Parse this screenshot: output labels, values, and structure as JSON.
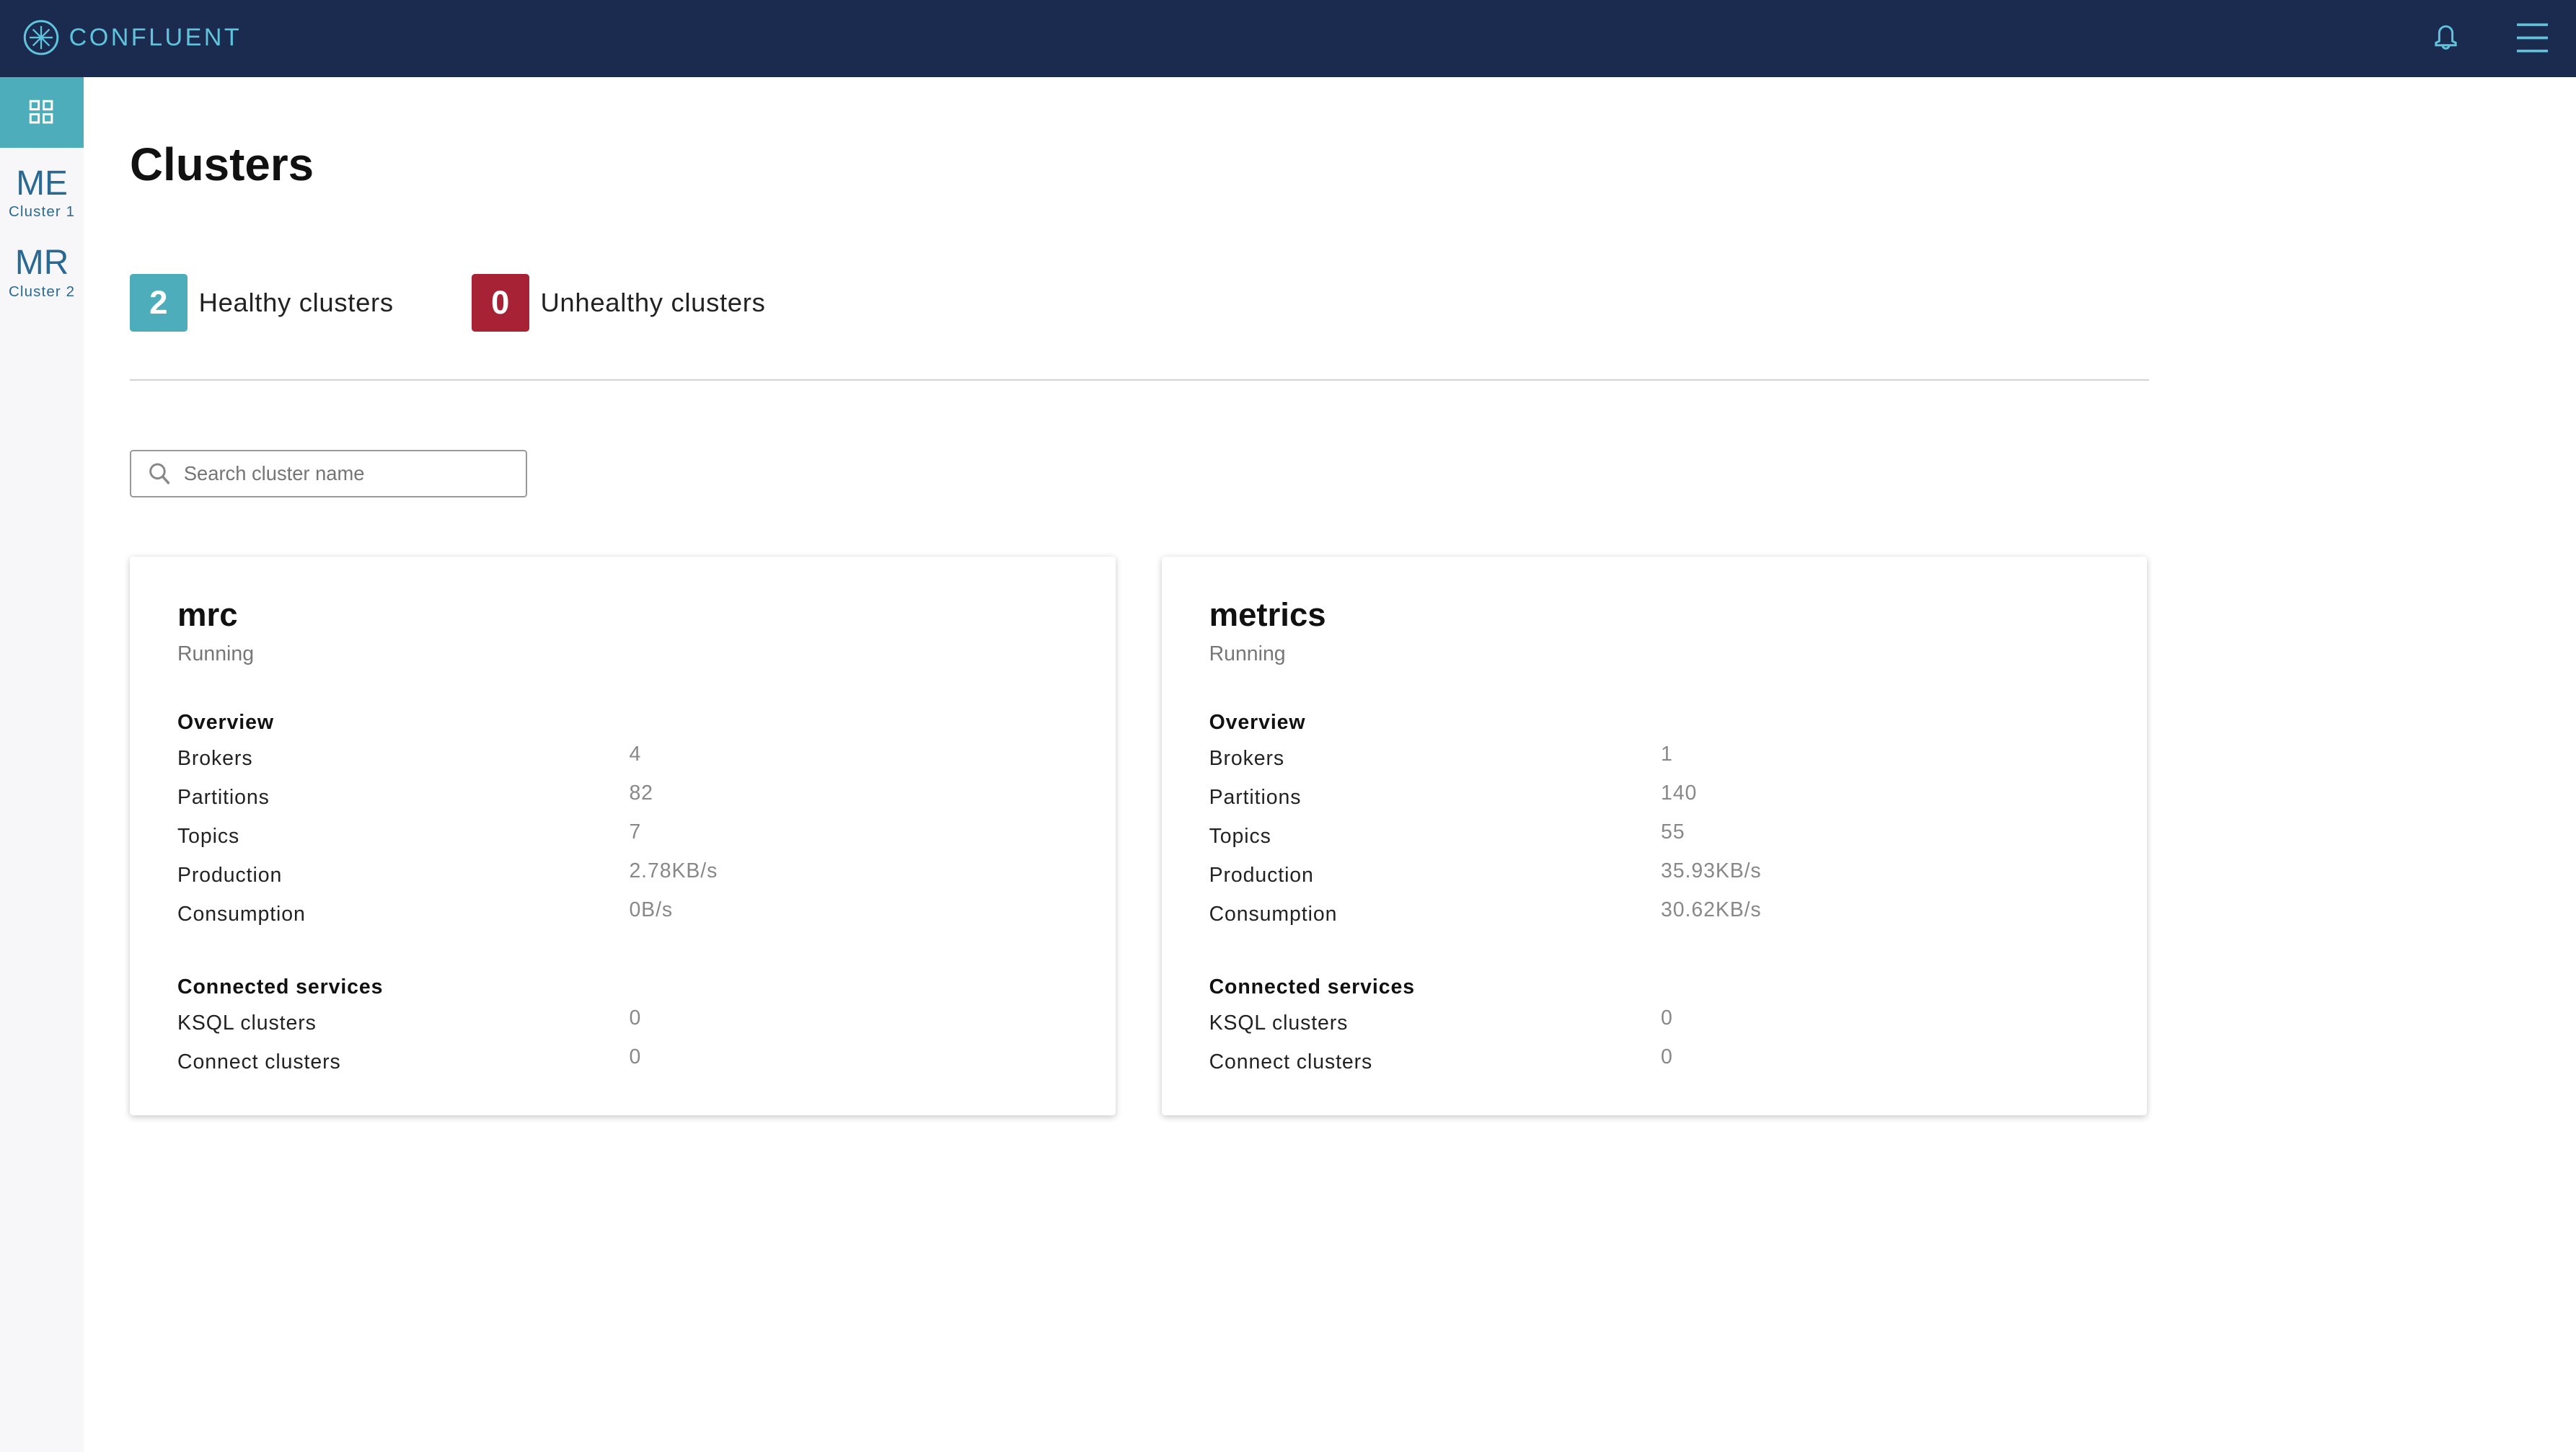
{
  "header": {
    "brand": "CONFLUENT",
    "icons": [
      "confluent-logo-icon",
      "bell-icon",
      "hamburger-menu-icon"
    ]
  },
  "sidebar": {
    "items": [
      {
        "abbr": "ME",
        "label": "Cluster 1"
      },
      {
        "abbr": "MR",
        "label": "Cluster 2"
      }
    ]
  },
  "page": {
    "title": "Clusters",
    "healthy": {
      "count": "2",
      "label": "Healthy clusters",
      "color": "#4eadbb"
    },
    "unhealthy": {
      "count": "0",
      "label": "Unhealthy clusters",
      "color": "#a82236"
    },
    "search_placeholder": "Search cluster name"
  },
  "clusters": [
    {
      "name": "mrc",
      "status": "Running",
      "overview_title": "Overview",
      "overview": [
        {
          "label": "Brokers",
          "value": "4"
        },
        {
          "label": "Partitions",
          "value": "82"
        },
        {
          "label": "Topics",
          "value": "7"
        },
        {
          "label": "Production",
          "value": "2.78KB/s"
        },
        {
          "label": "Consumption",
          "value": "0B/s"
        }
      ],
      "services_title": "Connected services",
      "services": [
        {
          "label": "KSQL clusters",
          "value": "0"
        },
        {
          "label": "Connect clusters",
          "value": "0"
        }
      ]
    },
    {
      "name": "metrics",
      "status": "Running",
      "overview_title": "Overview",
      "overview": [
        {
          "label": "Brokers",
          "value": "1"
        },
        {
          "label": "Partitions",
          "value": "140"
        },
        {
          "label": "Topics",
          "value": "55"
        },
        {
          "label": "Production",
          "value": "35.93KB/s"
        },
        {
          "label": "Consumption",
          "value": "30.62KB/s"
        }
      ],
      "services_title": "Connected services",
      "services": [
        {
          "label": "KSQL clusters",
          "value": "0"
        },
        {
          "label": "Connect clusters",
          "value": "0"
        }
      ]
    }
  ]
}
